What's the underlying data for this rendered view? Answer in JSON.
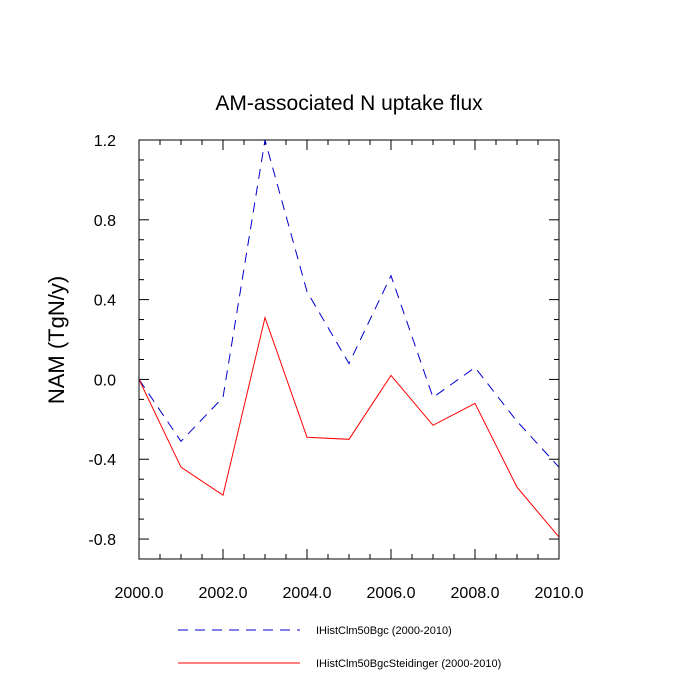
{
  "chart_data": {
    "type": "line",
    "title": "AM-associated N uptake flux",
    "xlabel": "",
    "ylabel": "NAM  (TgN/y)",
    "xlim": [
      2000,
      2010
    ],
    "ylim": [
      -0.9,
      1.2
    ],
    "x": [
      2000,
      2001,
      2002,
      2003,
      2004,
      2005,
      2006,
      2007,
      2008,
      2009,
      2010
    ],
    "x_ticks": [
      2000,
      2002,
      2004,
      2006,
      2008,
      2010
    ],
    "x_tick_labels": [
      "2000.0",
      "2002.0",
      "2004.0",
      "2006.0",
      "2008.0",
      "2010.0"
    ],
    "y_ticks": [
      -0.8,
      -0.4,
      0.0,
      0.4,
      0.8,
      1.2
    ],
    "y_tick_labels": [
      "-0.8",
      "-0.4",
      "0.0",
      "0.4",
      "0.8",
      "1.2"
    ],
    "grid": false,
    "legend_position": "bottom",
    "series": [
      {
        "name": "IHistClm50Bgc (2000-2010)",
        "color": "#0000cc",
        "dash": "dashed",
        "values": [
          0.0,
          -0.31,
          -0.09,
          1.2,
          0.44,
          0.08,
          0.52,
          -0.09,
          0.06,
          -0.21,
          -0.44
        ]
      },
      {
        "name": "IHistClm50BgcSteidinger (2000-2010)",
        "color": "#ff0000",
        "dash": "solid",
        "values": [
          0.0,
          -0.44,
          -0.58,
          0.31,
          -0.29,
          -0.3,
          0.02,
          -0.23,
          -0.12,
          -0.54,
          -0.79
        ]
      }
    ]
  }
}
